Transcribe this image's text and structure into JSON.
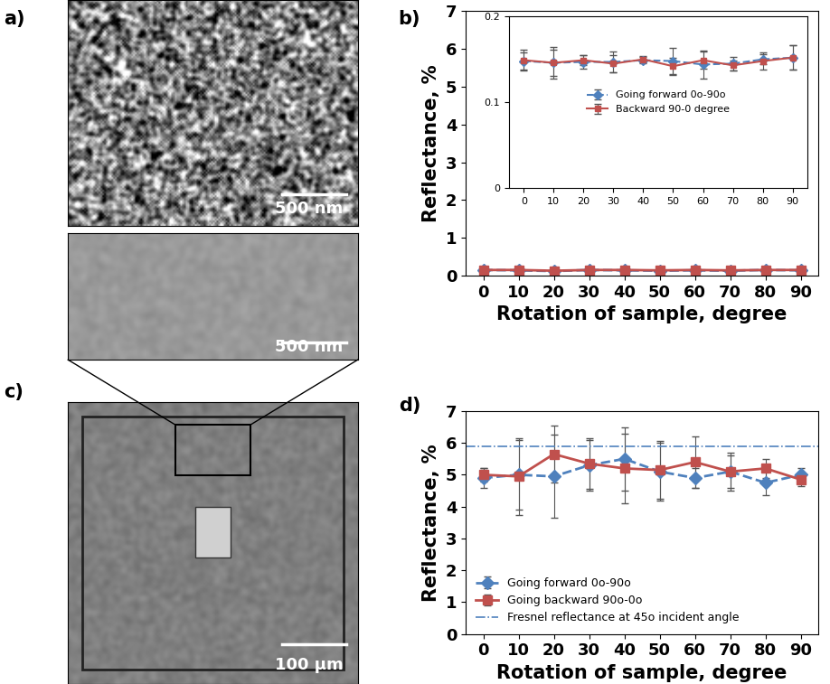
{
  "images": [
    {
      "panel_label": "a)",
      "scale_bar": "500 nm"
    },
    {
      "panel_label": "c)",
      "scale_bar": "100 µm",
      "zoom_scale_bar": "500 nm"
    }
  ],
  "chart_data": [
    {
      "type": "line",
      "panel_label": "b)",
      "x_label": "Rotation of sample, degree",
      "y_label": "Reflectance, %",
      "x": [
        0,
        10,
        20,
        30,
        40,
        50,
        60,
        70,
        80,
        90
      ],
      "xlim": [
        -5,
        95
      ],
      "xticks": [
        0,
        10,
        20,
        30,
        40,
        50,
        60,
        70,
        80,
        90
      ],
      "ylim": [
        0,
        7
      ],
      "yticks": [
        0,
        1,
        2,
        3,
        4,
        5,
        6,
        7
      ],
      "series": [
        {
          "name": "Going forward 0o-90o",
          "color": "#4f81bd",
          "marker": "diamond",
          "line_style": "dashed",
          "values": [
            0.15,
            0.14,
            0.12,
            0.15,
            0.14,
            0.13,
            0.14,
            0.13,
            0.15,
            0.14
          ]
        },
        {
          "name": "Backward 90-0 degree",
          "color": "#c0504d",
          "marker": "square",
          "line_style": "solid",
          "values": [
            0.15,
            0.15,
            0.13,
            0.15,
            0.15,
            0.14,
            0.15,
            0.14,
            0.15,
            0.15
          ]
        }
      ]
    },
    {
      "type": "line",
      "x": [
        0,
        10,
        20,
        30,
        40,
        50,
        60,
        70,
        80,
        90
      ],
      "xlim": [
        -5,
        95
      ],
      "xticks": [
        0,
        10,
        20,
        30,
        40,
        50,
        60,
        70,
        80,
        90
      ],
      "ylim": [
        0,
        0.2
      ],
      "yticks": [
        0,
        0.1,
        0.2
      ],
      "legend": "center",
      "series": [
        {
          "name": "Going forward 0o-90o",
          "color": "#4f81bd",
          "marker": "diamond",
          "line_style": "dashed",
          "values": [
            0.148,
            0.146,
            0.147,
            0.147,
            0.149,
            0.148,
            0.144,
            0.145,
            0.15,
            0.152
          ],
          "errors": [
            0.01,
            0.015,
            0.008,
            0.012,
            0.004,
            0.015,
            0.016,
            0.008,
            0.006,
            0.014
          ]
        },
        {
          "name": "Backward 90-0 degree",
          "color": "#c0504d",
          "marker": "square",
          "line_style": "solid",
          "values": [
            0.149,
            0.146,
            0.149,
            0.145,
            0.15,
            0.142,
            0.149,
            0.143,
            0.148,
            0.152
          ],
          "errors": [
            0.012,
            0.018,
            0.006,
            0.01,
            0.004,
            0.01,
            0.01,
            0.006,
            0.01,
            0.014
          ]
        }
      ]
    },
    {
      "type": "line",
      "panel_label": "d)",
      "x_label": "Rotation of sample, degree",
      "y_label": "Reflectance, %",
      "x": [
        0,
        10,
        20,
        30,
        40,
        50,
        60,
        70,
        80,
        90
      ],
      "xlim": [
        -5,
        95
      ],
      "xticks": [
        0,
        10,
        20,
        30,
        40,
        50,
        60,
        70,
        80,
        90
      ],
      "ylim": [
        0,
        7
      ],
      "yticks": [
        0,
        1,
        2,
        3,
        4,
        5,
        6,
        7
      ],
      "legend": "lower left",
      "series": [
        {
          "name": "Going forward 0o-90o",
          "color": "#4f81bd",
          "marker": "diamond",
          "line_style": "dashed",
          "values": [
            4.9,
            5.0,
            4.95,
            5.3,
            5.5,
            5.1,
            4.9,
            5.1,
            4.75,
            5.0
          ],
          "errors": [
            0.3,
            1.1,
            1.3,
            0.8,
            1.0,
            0.9,
            0.3,
            0.6,
            0.4,
            0.2
          ]
        },
        {
          "name": "Going backward 90o-0o",
          "color": "#c0504d",
          "marker": "square",
          "line_style": "solid",
          "values": [
            5.0,
            4.95,
            5.65,
            5.35,
            5.2,
            5.15,
            5.4,
            5.1,
            5.2,
            4.85
          ],
          "errors": [
            0.2,
            1.2,
            0.9,
            0.8,
            1.1,
            0.9,
            0.8,
            0.5,
            0.3,
            0.2
          ]
        }
      ],
      "hline": {
        "name": "Fresnel reflectance at 45o incident angle",
        "value": 5.9,
        "color": "#4f81bd",
        "line_style": "dashdot"
      }
    }
  ]
}
